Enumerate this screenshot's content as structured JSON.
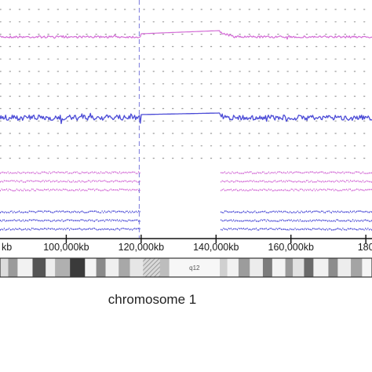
{
  "chart_data": {
    "type": "line",
    "title": "",
    "xlabel": "chromosome 1",
    "ylabel": "",
    "x_unit": "kb",
    "xlim": [
      80000,
      185000
    ],
    "x_ticks": [
      {
        "value": 80000,
        "label": "kb"
      },
      {
        "value": 100000,
        "label": "100,000kb"
      },
      {
        "value": 120000,
        "label": "120,000kb"
      },
      {
        "value": 140000,
        "label": "140,000kb"
      },
      {
        "value": 160000,
        "label": "160,000kb"
      },
      {
        "value": 180000,
        "label": "180"
      }
    ],
    "grid": true,
    "centromere_marker_x": 119500,
    "no_data_region": [
      120000,
      141000
    ],
    "series": [
      {
        "color": "#d36bd6",
        "values_x": [
          80000,
          120000,
          140000,
          141000,
          143000,
          185000
        ],
        "values_y": [
          0.0,
          0.0,
          0.08,
          0.9,
          0.05,
          0.0
        ]
      },
      {
        "color": "#4a4ad6",
        "values_x": [
          80000,
          120000,
          140000,
          141000,
          143000,
          185000
        ],
        "values_y": [
          0.0,
          0.0,
          0.15,
          0.1,
          0.0,
          0.0
        ]
      }
    ],
    "genotype_tracks": {
      "pink_rows": 3,
      "blue_rows": 3,
      "pink_color": "#d36bd6",
      "blue_color": "#4a4ad6"
    },
    "ideogram": {
      "band_label": "q12",
      "bands": [
        {
          "start": 80000,
          "end": 82000,
          "shade": "#6e6e6e"
        },
        {
          "start": 82000,
          "end": 84500,
          "shade": "#dcdcdc"
        },
        {
          "start": 84500,
          "end": 87000,
          "shade": "#9a9a9a"
        },
        {
          "start": 87000,
          "end": 91000,
          "shade": "#f2f2f2"
        },
        {
          "start": 91000,
          "end": 94500,
          "shade": "#555555"
        },
        {
          "start": 94500,
          "end": 97000,
          "shade": "#ededed"
        },
        {
          "start": 97000,
          "end": 101000,
          "shade": "#b0b0b0"
        },
        {
          "start": 101000,
          "end": 105000,
          "shade": "#3a3a3a"
        },
        {
          "start": 105000,
          "end": 108000,
          "shade": "#f4f4f4"
        },
        {
          "start": 108000,
          "end": 110500,
          "shade": "#8a8a8a"
        },
        {
          "start": 110500,
          "end": 114000,
          "shade": "#f0f0f0"
        },
        {
          "start": 114000,
          "end": 117000,
          "shade": "#a8a8a8"
        },
        {
          "start": 117000,
          "end": 120500,
          "shade": "#e6e6e6"
        },
        {
          "start": 120500,
          "end": 125000,
          "shade": "hatch"
        },
        {
          "start": 125000,
          "end": 127500,
          "shade": "#bdbdbd"
        },
        {
          "start": 127500,
          "end": 141000,
          "shade": "#f7f7f7"
        },
        {
          "start": 141000,
          "end": 143000,
          "shade": "#d0d0d0"
        },
        {
          "start": 143000,
          "end": 146000,
          "shade": "#f2f2f2"
        },
        {
          "start": 146000,
          "end": 149000,
          "shade": "#9c9c9c"
        },
        {
          "start": 149000,
          "end": 152500,
          "shade": "#ececec"
        },
        {
          "start": 152500,
          "end": 155000,
          "shade": "#7c7c7c"
        },
        {
          "start": 155000,
          "end": 158500,
          "shade": "#f3f3f3"
        },
        {
          "start": 158500,
          "end": 160500,
          "shade": "#9a9a9a"
        },
        {
          "start": 160500,
          "end": 163500,
          "shade": "#e2e2e2"
        },
        {
          "start": 163500,
          "end": 166000,
          "shade": "#6a6a6a"
        },
        {
          "start": 166000,
          "end": 170000,
          "shade": "#f1f1f1"
        },
        {
          "start": 170000,
          "end": 172500,
          "shade": "#8c8c8c"
        },
        {
          "start": 172500,
          "end": 176000,
          "shade": "#ededed"
        },
        {
          "start": 176000,
          "end": 179000,
          "shade": "#a4a4a4"
        },
        {
          "start": 179000,
          "end": 182000,
          "shade": "#f5f5f5"
        },
        {
          "start": 182000,
          "end": 185000,
          "shade": "#595959"
        }
      ]
    }
  }
}
